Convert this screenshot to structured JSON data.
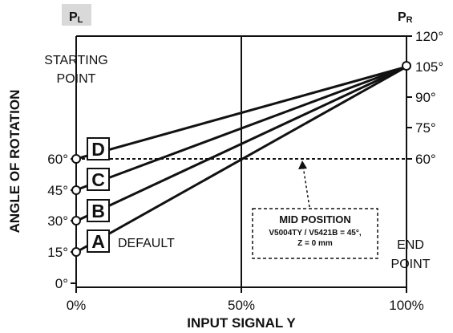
{
  "axes": {
    "x_title": "INPUT SIGNAL Y",
    "y_title": "ANGLE OF ROTATION",
    "x_ticks": [
      "0%",
      "50%",
      "100%"
    ],
    "left_ticks": [
      "0°",
      "15°",
      "30°",
      "45°",
      "60°"
    ],
    "right_ticks": [
      "60°",
      "75°",
      "90°",
      "105°",
      "120°"
    ]
  },
  "corners": {
    "left": {
      "main": "P",
      "sub": "L",
      "bg": "#d9d9d9"
    },
    "right": {
      "main": "P",
      "sub": "R"
    }
  },
  "labels": {
    "starting_point": [
      "STARTING",
      "POINT"
    ],
    "end_point": [
      "END",
      "POINT"
    ],
    "default": "DEFAULT"
  },
  "lines": [
    {
      "letter": "A",
      "start_deg": 15
    },
    {
      "letter": "B",
      "start_deg": 30
    },
    {
      "letter": "C",
      "start_deg": 45
    },
    {
      "letter": "D",
      "start_deg": 60
    }
  ],
  "end_deg": 105,
  "mid_position": {
    "value_deg": 60,
    "title": "MID POSITION",
    "lines": [
      "V5004TY / V5421B = 45°,",
      "Z = 0 mm"
    ]
  }
}
